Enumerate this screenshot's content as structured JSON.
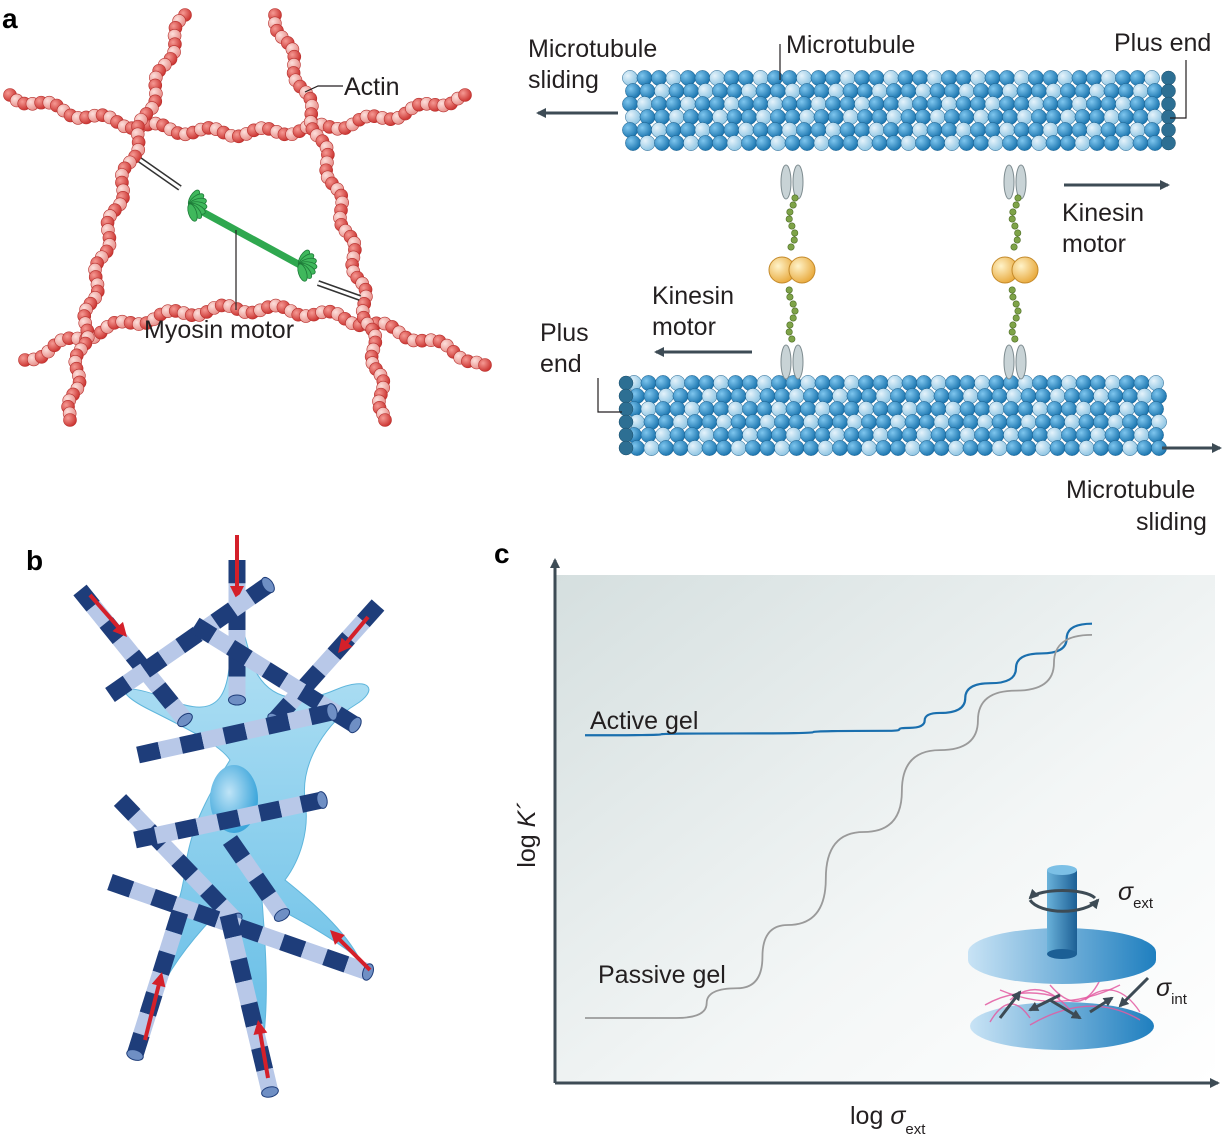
{
  "panel_a": {
    "letter": "a",
    "actin_label": "Actin",
    "myosin_label": "Myosin motor",
    "microtubule_label": "Microtubule",
    "plus_end_top": "Plus end",
    "plus_end_bottom_line1": "Plus",
    "plus_end_bottom_line2": "end",
    "sliding_left_line1": "Microtubule",
    "sliding_left_line2": "sliding",
    "sliding_right_line1": "Microtubule",
    "sliding_right_line2": "sliding",
    "kinesin_right_line1": "Kinesin",
    "kinesin_right_line2": "motor",
    "kinesin_left_line1": "Kinesin",
    "kinesin_left_line2": "motor"
  },
  "panel_b": {
    "letter": "b"
  },
  "panel_c": {
    "letter": "c",
    "ylabel_prefix": "log ",
    "ylabel_var": "K´",
    "xlabel_prefix": "log ",
    "xlabel_var": "σ",
    "xlabel_sub": "ext",
    "inset_ext_var": "σ",
    "inset_ext_sub": "ext",
    "inset_int_var": "σ",
    "inset_int_sub": "int"
  },
  "chart_data": {
    "type": "line",
    "xlabel": "log σext",
    "ylabel": "log K´",
    "series": [
      {
        "name": "Active gel",
        "color": "#1a6fae",
        "x": [
          0.0,
          0.3,
          0.6,
          0.64,
          0.7,
          0.8,
          0.9,
          1.0
        ],
        "y": [
          0.76,
          0.765,
          0.772,
          0.78,
          0.82,
          0.9,
          0.98,
          1.06
        ]
      },
      {
        "name": "Passive gel",
        "color": "#9a9a9a",
        "x": [
          0.0,
          0.18,
          0.3,
          0.4,
          0.55,
          0.7,
          0.85,
          1.0
        ],
        "y": [
          0.0,
          0.0,
          0.08,
          0.25,
          0.5,
          0.72,
          0.88,
          1.03
        ]
      }
    ]
  },
  "colors": {
    "actin": "#e8534f",
    "actin_light": "#f4a3a0",
    "myosin": "#2fa84f",
    "microtubule_dark": "#1f85c2",
    "microtubule_light": "#a9d4ec",
    "kinesin_head": "#f5c66a",
    "kinesin_stalk": "#6a8f3a",
    "cell": "#8fd0ee",
    "mt_stripe_dark": "#1e3d7a",
    "mt_stripe_light": "#b8c8e8",
    "arrow_red": "#d4202a",
    "plot_bg": "#e6ecec",
    "axis": "#3d4b55"
  }
}
